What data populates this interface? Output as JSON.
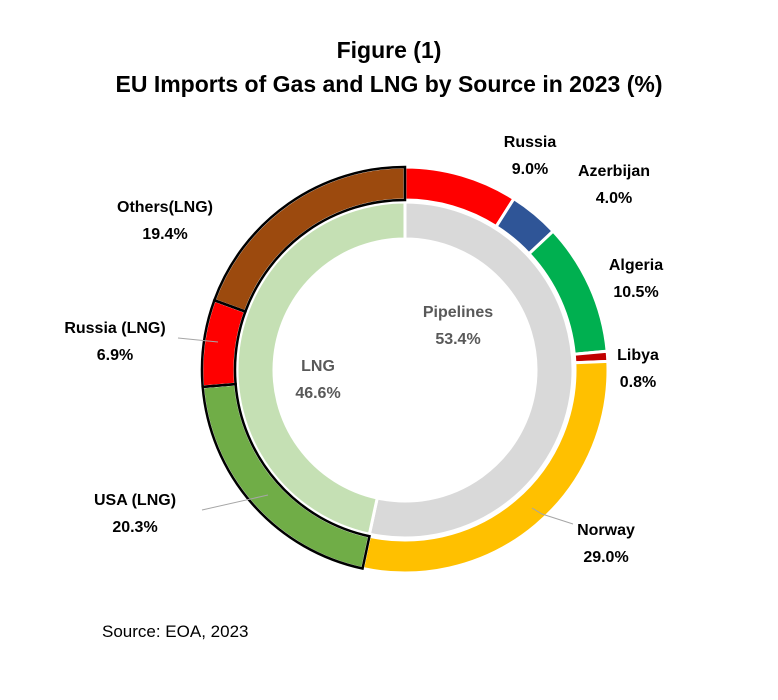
{
  "title": "Figure (1)",
  "subtitle": "EU Imports of Gas and LNG by Source in 2023 (%)",
  "source": "Source: EOA, 2023",
  "chart_data": {
    "type": "pie",
    "subtype": "nested-donut",
    "inner_ring": [
      {
        "label": "Pipelines",
        "value": 53.4,
        "display": "53.4%",
        "color": "#d9d9d9"
      },
      {
        "label": "LNG",
        "value": 46.6,
        "display": "46.6%",
        "color": "#c5e0b4"
      }
    ],
    "outer_ring": [
      {
        "label": "Russia",
        "value": 9.0,
        "display": "9.0%",
        "color": "#ff0000",
        "group": "Pipelines"
      },
      {
        "label": "Azerbijan",
        "value": 4.0,
        "display": "4.0%",
        "color": "#2f5597",
        "group": "Pipelines"
      },
      {
        "label": "Algeria",
        "value": 10.5,
        "display": "10.5%",
        "color": "#00b050",
        "group": "Pipelines"
      },
      {
        "label": "Libya",
        "value": 0.8,
        "display": "0.8%",
        "color": "#c00000",
        "group": "Pipelines"
      },
      {
        "label": "Norway",
        "value": 29.0,
        "display": "29.0%",
        "color": "#ffc000",
        "group": "Pipelines"
      },
      {
        "label": "USA (LNG)",
        "value": 20.3,
        "display": "20.3%",
        "color": "#70ad47",
        "group": "LNG"
      },
      {
        "label": "Russia (LNG)",
        "value": 6.9,
        "display": "6.9%",
        "color": "#ff0000",
        "group": "LNG"
      },
      {
        "label": "Others(LNG)",
        "value": 19.4,
        "display": "19.4%",
        "color": "#9c4a0e",
        "group": "LNG"
      }
    ]
  }
}
